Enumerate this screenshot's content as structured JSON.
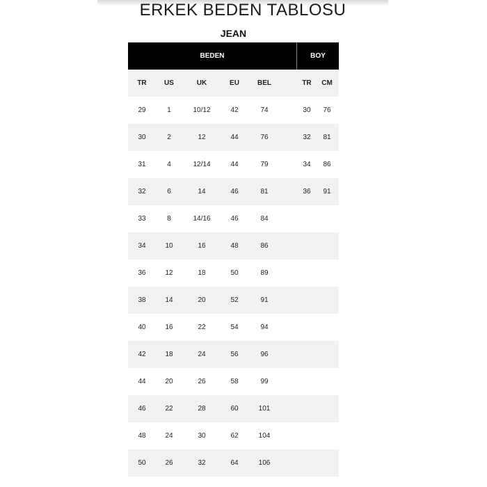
{
  "title": "ERKEK BEDEN TABLOSU",
  "subtitle": "JEAN",
  "table": {
    "group_headers": {
      "beden": "BEDEN",
      "boy": "BOY"
    },
    "columns": [
      "TR",
      "US",
      "UK",
      "EU",
      "BEL",
      "TR",
      "CM"
    ],
    "rows": [
      [
        "29",
        "1",
        "10/12",
        "42",
        "74",
        "30",
        "76"
      ],
      [
        "30",
        "2",
        "12",
        "44",
        "76",
        "32",
        "81"
      ],
      [
        "31",
        "4",
        "12/14",
        "44",
        "79",
        "34",
        "86"
      ],
      [
        "32",
        "6",
        "14",
        "46",
        "81",
        "36",
        "91"
      ],
      [
        "33",
        "8",
        "14/16",
        "46",
        "84",
        "",
        ""
      ],
      [
        "34",
        "10",
        "16",
        "48",
        "86",
        "",
        ""
      ],
      [
        "36",
        "12",
        "18",
        "50",
        "89",
        "",
        ""
      ],
      [
        "38",
        "14",
        "20",
        "52",
        "91",
        "",
        ""
      ],
      [
        "40",
        "16",
        "22",
        "54",
        "94",
        "",
        ""
      ],
      [
        "42",
        "18",
        "24",
        "56",
        "96",
        "",
        ""
      ],
      [
        "44",
        "20",
        "26",
        "58",
        "99",
        "",
        ""
      ],
      [
        "46",
        "22",
        "28",
        "60",
        "101",
        "",
        ""
      ],
      [
        "48",
        "24",
        "30",
        "62",
        "104",
        "",
        ""
      ],
      [
        "50",
        "26",
        "32",
        "64",
        "106",
        "",
        ""
      ]
    ]
  },
  "colors": {
    "header_bg": "#000000",
    "stripe": "#f1f1f1"
  }
}
